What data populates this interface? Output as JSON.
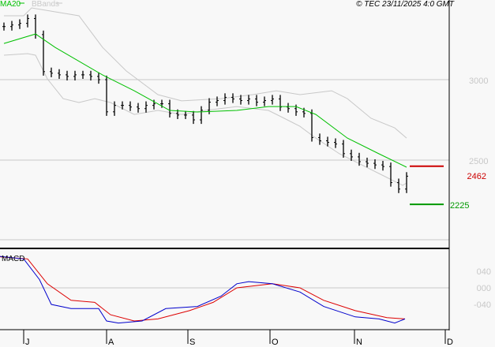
{
  "header": {
    "copyright": "© TEC 23/11/2025 4:0 GMT",
    "legend_ma": "MA20",
    "legend_bb": "BBands"
  },
  "colors": {
    "ma": "#00c000",
    "bands": "#c8c8c8",
    "bars": "#000000",
    "resistance": "#cc0000",
    "support": "#009900",
    "macd": "#0000cc",
    "signal": "#dd0000"
  },
  "chart_data": [
    {
      "type": "line",
      "title": "Price (OHLC bars) with MA20 and Bollinger Bands",
      "x_unit": "bar index (~2 trading days)",
      "ylim": [
        19.9,
        35
      ],
      "y_ticks": [
        {
          "value": 30,
          "label": "3000"
        },
        {
          "value": 25,
          "label": "2500"
        }
      ],
      "x_ticks": [
        {
          "index": 2.5,
          "label": "J"
        },
        {
          "index": 13,
          "label": "A"
        },
        {
          "index": 23.3,
          "label": "S"
        },
        {
          "index": 33.7,
          "label": "O"
        },
        {
          "index": 44.4,
          "label": "N"
        },
        {
          "index": 55.9,
          "label": "D"
        }
      ],
      "closes": [
        33.3,
        33.4,
        33.5,
        33.8,
        32.8,
        30.5,
        30.4,
        30.3,
        30.2,
        30.3,
        30.3,
        30.2,
        30.0,
        28.0,
        28.4,
        28.4,
        28.3,
        28.2,
        28.4,
        28.5,
        28.5,
        27.9,
        27.8,
        27.8,
        27.5,
        28.1,
        28.6,
        28.7,
        28.9,
        28.8,
        28.7,
        28.8,
        28.6,
        28.7,
        28.8,
        28.3,
        28.2,
        28.0,
        27.9,
        26.4,
        26.2,
        26.1,
        26.0,
        25.4,
        25.2,
        24.9,
        24.8,
        24.7,
        24.6,
        23.6,
        23.2,
        24.0
      ],
      "series": [
        {
          "name": "MA20",
          "points": [
            [
              0,
              32.25
            ],
            [
              4,
              32.84
            ],
            [
              6.5,
              32.0
            ],
            [
              12.5,
              30.29
            ],
            [
              16.5,
              29.31
            ],
            [
              21,
              28.09
            ],
            [
              24.5,
              27.99
            ],
            [
              29.5,
              28.09
            ],
            [
              33.5,
              28.33
            ],
            [
              37,
              28.33
            ],
            [
              39.5,
              27.84
            ],
            [
              43.5,
              26.37
            ],
            [
              47.5,
              25.39
            ],
            [
              51,
              24.56
            ]
          ]
        },
        {
          "name": "BB upper",
          "points": [
            [
              0,
              33.97
            ],
            [
              2.5,
              33.97
            ],
            [
              3.5,
              34.46
            ],
            [
              9.5,
              33.97
            ],
            [
              12.5,
              32.0
            ],
            [
              15.5,
              30.54
            ],
            [
              19.5,
              29.07
            ],
            [
              22.5,
              28.68
            ],
            [
              27.5,
              28.82
            ],
            [
              31.5,
              29.07
            ],
            [
              34.5,
              29.31
            ],
            [
              37.5,
              29.07
            ],
            [
              41.5,
              29.31
            ],
            [
              43.5,
              28.82
            ],
            [
              46.5,
              27.6
            ],
            [
              49.5,
              27.0
            ],
            [
              51,
              26.37
            ]
          ]
        },
        {
          "name": "BB lower",
          "points": [
            [
              0,
              31.52
            ],
            [
              3,
              31.62
            ],
            [
              4,
              31.52
            ],
            [
              5.5,
              30.05
            ],
            [
              7.5,
              28.82
            ],
            [
              9.5,
              28.58
            ],
            [
              11.5,
              28.82
            ],
            [
              13.5,
              28.58
            ],
            [
              16.5,
              27.84
            ],
            [
              19.5,
              28.09
            ],
            [
              22.5,
              27.84
            ],
            [
              25.5,
              28.09
            ],
            [
              29.5,
              28.33
            ],
            [
              33.5,
              28.09
            ],
            [
              35.5,
              27.6
            ],
            [
              37.5,
              27.1
            ],
            [
              39.5,
              26.37
            ],
            [
              42.5,
              25.39
            ],
            [
              45.5,
              24.66
            ],
            [
              48.5,
              23.92
            ],
            [
              50.5,
              23.43
            ],
            [
              51,
              23.58
            ]
          ]
        }
      ],
      "levels": [
        {
          "name": "resistance",
          "value": 24.62,
          "label": "2462"
        },
        {
          "name": "support",
          "value": 22.25,
          "label": "2225"
        }
      ]
    },
    {
      "type": "line",
      "title": "MACD",
      "ylim": [
        -1.0,
        0.95
      ],
      "y_ticks": [
        {
          "value": 0.4,
          "label": "040"
        },
        {
          "value": 0.0,
          "label": "000"
        },
        {
          "value": -0.4,
          "label": "-040"
        }
      ],
      "series": [
        {
          "name": "MACD",
          "points": [
            [
              -0.5,
              0.76
            ],
            [
              2.5,
              0.7
            ],
            [
              4.5,
              0.2
            ],
            [
              6,
              -0.4
            ],
            [
              8.5,
              -0.5
            ],
            [
              12,
              -0.5
            ],
            [
              13,
              -0.8
            ],
            [
              14.5,
              -0.85
            ],
            [
              17.5,
              -0.8
            ],
            [
              20.5,
              -0.5
            ],
            [
              24.5,
              -0.45
            ],
            [
              27.5,
              -0.2
            ],
            [
              29.5,
              0.1
            ],
            [
              31,
              0.15
            ],
            [
              34,
              0.1
            ],
            [
              37.5,
              -0.1
            ],
            [
              40.5,
              -0.45
            ],
            [
              44.5,
              -0.7
            ],
            [
              47.5,
              -0.75
            ],
            [
              49.5,
              -0.85
            ],
            [
              50.8,
              -0.75
            ]
          ]
        },
        {
          "name": "Signal",
          "points": [
            [
              -0.5,
              0.75
            ],
            [
              3,
              0.7
            ],
            [
              5.5,
              0.1
            ],
            [
              8.5,
              -0.3
            ],
            [
              11.5,
              -0.35
            ],
            [
              13.5,
              -0.65
            ],
            [
              16.5,
              -0.8
            ],
            [
              19.5,
              -0.75
            ],
            [
              23.5,
              -0.55
            ],
            [
              26.5,
              -0.35
            ],
            [
              29.5,
              0.0
            ],
            [
              34,
              0.1
            ],
            [
              37.5,
              0.0
            ],
            [
              40.5,
              -0.3
            ],
            [
              44.5,
              -0.55
            ],
            [
              48.5,
              -0.72
            ],
            [
              50.8,
              -0.75
            ]
          ]
        }
      ]
    }
  ]
}
